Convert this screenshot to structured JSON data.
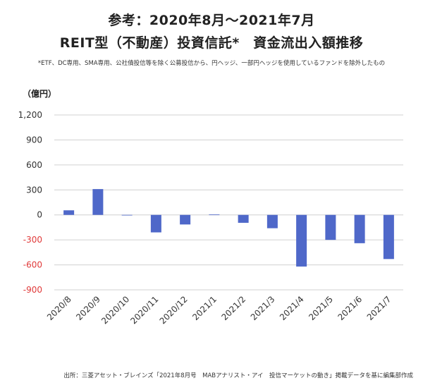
{
  "header": {
    "title_line1": "参考：2020年8月～2021年7月",
    "title_line2": "REIT型（不動産）投資信託*　資金流出入額推移",
    "note": "*ETF、DC専用、SMA専用、公社債投信等を除く公募投信から、円ヘッジ、一部円ヘッジを使用しているファンドを除外したもの"
  },
  "unit_label": "（億円）",
  "source": "出所：三菱アセット・ブレインズ「2021年8月号　MABアナリスト・アイ　投信マーケットの動き」掲載データを基に編集部作成",
  "colors": {
    "bar": "#4f68c9",
    "negative_tick": "#e03a3a",
    "grid": "#d0d0d0"
  },
  "chart_data": {
    "type": "bar",
    "categories": [
      "2020/8",
      "2020/9",
      "2020/10",
      "2020/11",
      "2020/12",
      "2021/1",
      "2021/2",
      "2021/3",
      "2021/4",
      "2021/5",
      "2021/6",
      "2021/7"
    ],
    "values": [
      55,
      310,
      -5,
      -210,
      -115,
      5,
      -95,
      -160,
      -620,
      -300,
      -340,
      -530
    ],
    "ylim": [
      -900,
      1200
    ],
    "yticks": [
      1200,
      900,
      600,
      300,
      0,
      -300,
      -600,
      -900
    ],
    "ytick_labels": [
      "1,200",
      "900",
      "600",
      "300",
      "0",
      "-300",
      "-600",
      "-900"
    ],
    "grid": true
  }
}
